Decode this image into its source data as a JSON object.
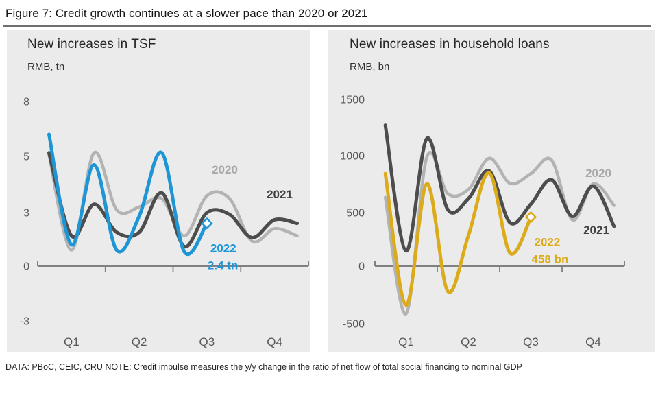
{
  "figure": {
    "title": "Figure 7: Credit growth continues at a slower pace than 2020 or 2021",
    "footer": "DATA: PBoC, CEIC, CRU NOTE: Credit impulse measures the y/y change in the ratio of net flow of total social financing to nominal GDP"
  },
  "chart_data": [
    {
      "type": "line",
      "title": "New increases in TSF",
      "ylabel": "RMB, tn",
      "x_description": "12 monthly points per year (Jan-Dec), axis labeled by quarter",
      "x_tick_labels": [
        "Q1",
        "Q2",
        "Q3",
        "Q4"
      ],
      "y_tick_labels": [
        "8",
        "5",
        "3",
        "0",
        "-3"
      ],
      "y_tick_values": [
        8,
        5,
        3,
        0,
        -3
      ],
      "grid": false,
      "legend": "inline series labels on chart",
      "series": [
        {
          "name": "2020",
          "color": "#b3b3b3",
          "values": [
            5.1,
            0.9,
            5.2,
            3.1,
            3.2,
            3.5,
            1.7,
            3.6,
            3.5,
            1.4,
            2.1,
            1.7
          ]
        },
        {
          "name": "2021",
          "color": "#4d4d4d",
          "values": [
            5.2,
            1.7,
            3.3,
            1.9,
            1.9,
            3.7,
            1.1,
            3.0,
            2.9,
            1.6,
            2.6,
            2.4
          ]
        },
        {
          "name": "2022",
          "color": "#1e96d5",
          "values": [
            6.2,
            1.2,
            4.7,
            0.9,
            2.8,
            5.2,
            0.8,
            2.4
          ],
          "end_marker": "diamond",
          "end_value_label": "2.4 tn"
        }
      ]
    },
    {
      "type": "line",
      "title": "New increases in household loans",
      "ylabel": "RMB, bn",
      "x_description": "12 monthly points per year (Jan-Dec), axis labeled by quarter",
      "x_tick_labels": [
        "Q1",
        "Q2",
        "Q3",
        "Q4"
      ],
      "y_tick_labels": [
        "1500",
        "1000",
        "500",
        "0",
        "-500"
      ],
      "y_tick_values": [
        1500,
        1000,
        500,
        0,
        -500
      ],
      "grid": false,
      "legend": "inline series labels on chart",
      "series": [
        {
          "name": "2020",
          "color": "#b3b3b3",
          "values": [
            634,
            -413,
            989,
            667,
            705,
            978,
            757,
            842,
            961,
            433,
            753,
            563
          ]
        },
        {
          "name": "2021",
          "color": "#4d4d4d",
          "values": [
            1271,
            143,
            1153,
            528,
            624,
            866,
            406,
            575,
            788,
            464,
            734,
            372
          ]
        },
        {
          "name": "2022",
          "color": "#dcab1c",
          "values": [
            843,
            -337,
            753,
            -217,
            289,
            848,
            122,
            458
          ],
          "end_marker": "diamond",
          "end_value_label": "458 bn"
        }
      ]
    }
  ],
  "style": {
    "panel_background": "#ebebeb",
    "axis_color": "#808080",
    "tick_label_color": "#595959",
    "accent_2022_tsf": "#1e96d5",
    "accent_2022_loans": "#dcab1c",
    "series_2021_color": "#4d4d4d",
    "series_2020_color": "#b3b3b3"
  }
}
